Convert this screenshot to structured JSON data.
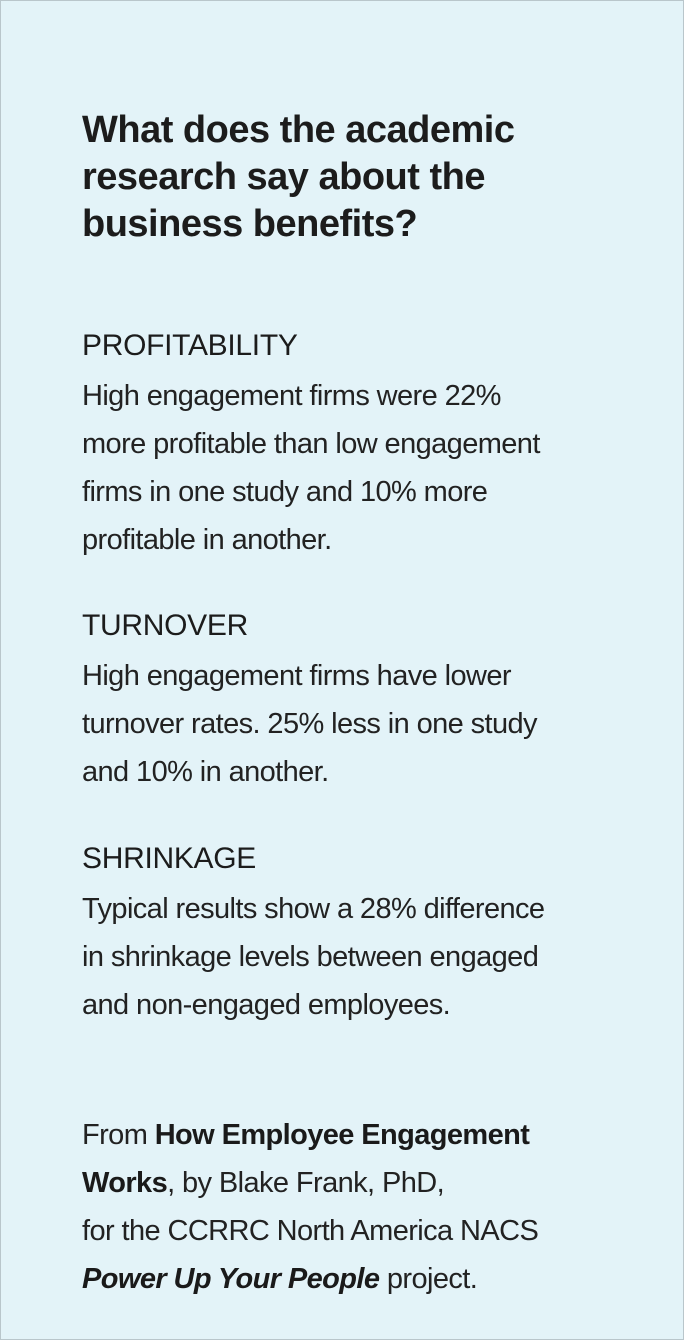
{
  "title_lines": [
    "What does the academic",
    "research say about the",
    "business benefits?"
  ],
  "sections": [
    {
      "heading": "PROFITABILITY",
      "lines": [
        "High engagement firms were 22%",
        "more profitable than low engagement",
        "firms in one study and 10% more",
        "profitable in another."
      ]
    },
    {
      "heading": "TURNOVER",
      "lines": [
        "High engagement firms have lower",
        "turnover rates. 25% less in one study",
        "and 10% in another."
      ]
    },
    {
      "heading": "SHRINKAGE",
      "lines": [
        "Typical results show a 28% difference",
        "in shrinkage levels between engaged",
        "and non-engaged employees."
      ]
    }
  ],
  "source": {
    "prefix": "From ",
    "book_title_part1": "How Employee Engagement",
    "book_title_part2": "Works",
    "author": ", by Blake Frank, PhD,",
    "org": "for the CCRRC North America NACS",
    "project_name": "Power Up Your People",
    "suffix": " project."
  },
  "colors": {
    "panel_background": "#e3f3f8",
    "panel_border": "#b9c6cb",
    "text": "#1c1c1c"
  }
}
